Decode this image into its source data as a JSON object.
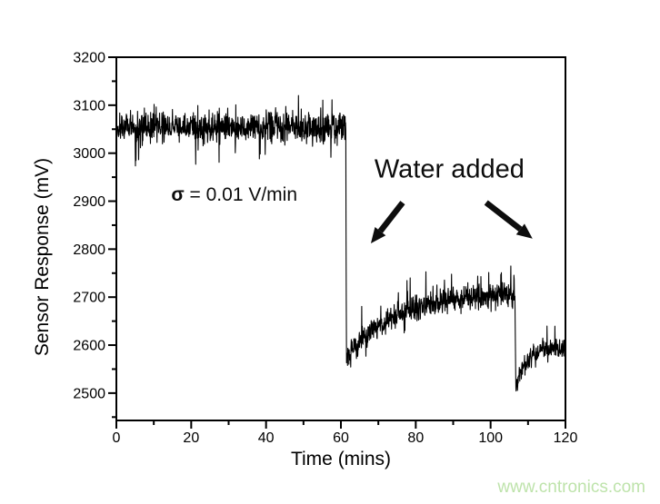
{
  "page": {
    "background_color": "#ffffff"
  },
  "watermark": {
    "text": "www.cntronics.com",
    "color": "#bee3ab"
  },
  "chart_data": {
    "type": "line",
    "title": "",
    "xlabel": "Time (mins)",
    "ylabel": "Sensor Response (mV)",
    "xlim": [
      0,
      120
    ],
    "ylim": [
      2443,
      3200
    ],
    "x_major_ticks": [
      0,
      20,
      40,
      60,
      80,
      100,
      120
    ],
    "x_minor_ticks": [
      10,
      30,
      50,
      70,
      90,
      110
    ],
    "y_major_ticks": [
      2500,
      2600,
      2700,
      2800,
      2900,
      3000,
      3100,
      3200
    ],
    "y_minor_ticks": [
      2450,
      2550,
      2650,
      2750,
      2850,
      2950,
      3050,
      3150
    ],
    "grid": false,
    "frame": "box",
    "line_color": "#000000",
    "axis_color": "#000000",
    "series": [
      {
        "name": "sensor-response",
        "color": "#000000",
        "sample_step_mins": 0.07,
        "noise_seed": 20240607,
        "segments": [
          {
            "t_start": 0,
            "t_end": 61.3,
            "shape": "flat",
            "base": 3054,
            "noise": 30,
            "spike_prob": 0.05,
            "spike_up": 40,
            "spike_down": 62
          },
          {
            "t_start": 61.3,
            "t_end": 61.5,
            "shape": "ramp",
            "from": 3045,
            "to": 2538,
            "noise": 4,
            "spike_prob": 0,
            "spike_up": 0,
            "spike_down": 0
          },
          {
            "t_start": 61.5,
            "t_end": 106.5,
            "shape": "exp_recovery",
            "asymptote": 2712,
            "amplitude": 135,
            "tau": 14,
            "noise": 24,
            "spike_prob": 0.07,
            "spike_up": 46,
            "spike_down": 28
          },
          {
            "t_start": 106.5,
            "t_end": 106.75,
            "shape": "ramp",
            "from": 2700,
            "to": 2507,
            "noise": 4,
            "spike_prob": 0,
            "spike_up": 0,
            "spike_down": 0
          },
          {
            "t_start": 106.75,
            "t_end": 120,
            "shape": "exp_recovery",
            "asymptote": 2598,
            "amplitude": 85,
            "tau": 3,
            "noise": 19,
            "spike_prob": 0.05,
            "spike_up": 36,
            "spike_down": 24
          }
        ]
      }
    ],
    "events": [
      {
        "label": "first water addition drop",
        "t": 61.4,
        "from_mV": 3045,
        "to_mV": 2538
      },
      {
        "label": "second water addition drop",
        "t": 106.6,
        "from_mV": 2700,
        "to_mV": 2507
      }
    ],
    "annotations": {
      "water_added": {
        "text": "Water added",
        "t": 89,
        "mV": 2965
      },
      "sigma": {
        "symbol": "σ",
        "rest": " = 0.01 V/min",
        "t": 31.5,
        "mV": 2913
      },
      "arrows": [
        {
          "from_t": 76.5,
          "from_mV": 2897,
          "to_t": 68,
          "to_mV": 2812
        },
        {
          "from_t": 98.8,
          "from_mV": 2897,
          "to_t": 111.2,
          "to_mV": 2822
        }
      ]
    }
  }
}
